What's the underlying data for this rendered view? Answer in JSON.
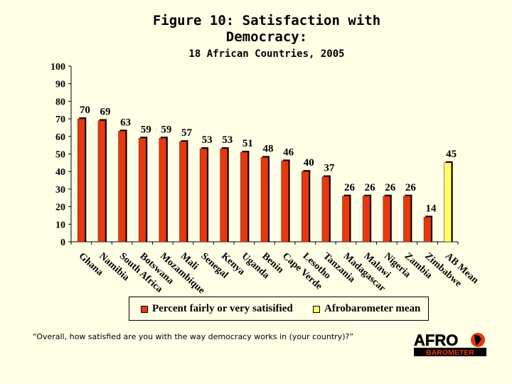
{
  "title_line1": "Figure 10:  Satisfaction with",
  "title_line2": "Democracy:",
  "subtitle": "18 African Countries, 2005",
  "question": "“Overall, how satisfied are you with the way democracy works in (your country)?”",
  "logo": {
    "top": "AFRO",
    "bottom": "BAROMETER"
  },
  "colors": {
    "country_bar": "#E8380D",
    "mean_bar": "#FFFF66",
    "background": "#FFFFE6"
  },
  "chart_data": {
    "type": "bar",
    "categories": [
      "Ghana",
      "Namibia",
      "South Africa",
      "Botswana",
      "Mozambique",
      "Mali",
      "Senegal",
      "Kenya",
      "Uganda",
      "Benin",
      "Cape Verde",
      "Lesotho",
      "Tanzania",
      "Madagascar",
      "Malawi",
      "Nigeria",
      "Zambia",
      "Zimbabwe",
      "AB Mean"
    ],
    "series": [
      {
        "name": "Percent fairly or very satisified",
        "values": [
          70,
          69,
          63,
          59,
          59,
          57,
          53,
          53,
          51,
          48,
          46,
          40,
          37,
          26,
          26,
          26,
          26,
          14,
          null
        ],
        "color": "#E8380D"
      },
      {
        "name": "Afrobarometer mean",
        "values": [
          null,
          null,
          null,
          null,
          null,
          null,
          null,
          null,
          null,
          null,
          null,
          null,
          null,
          null,
          null,
          null,
          null,
          null,
          45
        ],
        "color": "#FFFF66"
      }
    ],
    "yticks": [
      0,
      10,
      20,
      30,
      40,
      50,
      60,
      70,
      80,
      90,
      100
    ],
    "ylim": [
      0,
      100
    ],
    "grid": false,
    "legend_position": "bottom"
  }
}
